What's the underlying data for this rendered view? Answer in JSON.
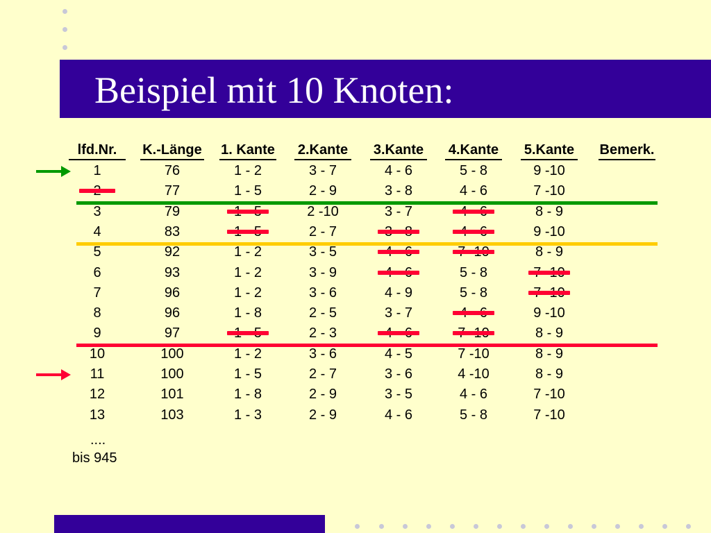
{
  "title": "Beispiel mit 10 Knoten:",
  "columns": [
    "lfd.Nr.",
    "K.-Länge",
    "1. Kante",
    "2.Kante",
    "3.Kante",
    "4.Kante",
    "5.Kante",
    "Bemerk."
  ],
  "rows": [
    [
      "1",
      "76",
      "1 - 2",
      "3 - 7",
      "4 - 6",
      "5 - 8",
      "9 -10"
    ],
    [
      "2",
      "77",
      "1 - 5",
      "2 - 9",
      "3 - 8",
      "4 - 6",
      "7 -10"
    ],
    [
      "3",
      "79",
      "1 - 5",
      "2 -10",
      "3 - 7",
      "4 - 6",
      "8 - 9"
    ],
    [
      "4",
      "83",
      "1 - 5",
      "2 - 7",
      "3 - 8",
      "4 - 6",
      "9 -10"
    ],
    [
      "5",
      "92",
      "1 - 2",
      "3 - 5",
      "4 - 6",
      "7 -10",
      "8 - 9"
    ],
    [
      "6",
      "93",
      "1 - 2",
      "3 - 9",
      "4 - 6",
      "5 - 8",
      "7 -10"
    ],
    [
      "7",
      "96",
      "1 - 2",
      "3 - 6",
      "4 - 9",
      "5 - 8",
      "7 -10"
    ],
    [
      "8",
      "96",
      "1 - 8",
      "2 - 5",
      "3 - 7",
      "4 - 6",
      "9 -10"
    ],
    [
      "9",
      "97",
      "1 - 5",
      "2 - 3",
      "4 - 6",
      "7 -10",
      "8 - 9"
    ],
    [
      "10",
      "100",
      "1 - 2",
      "3 - 6",
      "4 - 5",
      "7 -10",
      "8 - 9"
    ],
    [
      "11",
      "100",
      "1 - 5",
      "2 - 7",
      "3 - 6",
      "4 -10",
      "8 - 9"
    ],
    [
      "12",
      "101",
      "1 - 8",
      "2 - 9",
      "3 - 5",
      "4 - 6",
      "7 -10"
    ],
    [
      "13",
      "103",
      "1 - 3",
      "2 - 9",
      "4 - 6",
      "5 - 8",
      "7 -10"
    ]
  ],
  "footer": {
    "ellipsis": "....",
    "bis": "bis 945"
  },
  "strikes": [
    {
      "row": 2,
      "col": 0
    },
    {
      "row": 3,
      "col": 2
    },
    {
      "row": 3,
      "col": 5
    },
    {
      "row": 4,
      "col": 2
    },
    {
      "row": 4,
      "col": 4
    },
    {
      "row": 4,
      "col": 5
    },
    {
      "row": 5,
      "col": 4
    },
    {
      "row": 5,
      "col": 5
    },
    {
      "row": 6,
      "col": 4
    },
    {
      "row": 6,
      "col": 6
    },
    {
      "row": 7,
      "col": 6
    },
    {
      "row": 8,
      "col": 5
    },
    {
      "row": 9,
      "col": 2
    },
    {
      "row": 9,
      "col": 4
    },
    {
      "row": 9,
      "col": 5
    }
  ],
  "separators": [
    {
      "after_row": 2,
      "color": "#009900"
    },
    {
      "after_row": 4,
      "color": "#FFCC00"
    },
    {
      "after_row": 9,
      "color": "#FF0033"
    }
  ],
  "arrows": [
    {
      "row": 1,
      "color": "#009900"
    },
    {
      "row": 11,
      "color": "#FF0033"
    }
  ],
  "colors": {
    "background": "#FFFFCC",
    "title_bar": "#330099",
    "strike": "#FF0033"
  }
}
